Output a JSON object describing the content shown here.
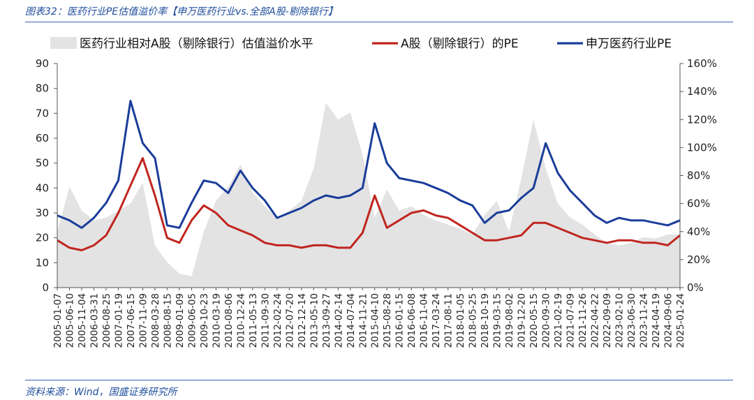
{
  "figure_title": "图表32：医药行业PE估值溢价率【申万医药行业vs.全部A股-剔除银行】",
  "source": "资料来源：Wind，国盛证券研究所",
  "colors": {
    "premium_fill": "#e3e3e3",
    "a_share": "#c0251f",
    "pharma": "#1a3d9a",
    "rule": "#3a63b8",
    "title": "#1f4e9c"
  },
  "chart_data": {
    "type": "line",
    "x": [
      "2005-01-07",
      "2005-06-10",
      "2005-11-04",
      "2006-03-31",
      "2006-08-25",
      "2007-01-19",
      "2007-06-15",
      "2007-11-09",
      "2008-03-28",
      "2008-08-15",
      "2009-01-09",
      "2009-06-05",
      "2009-10-23",
      "2010-03-19",
      "2010-08-06",
      "2010-12-24",
      "2011-05-13",
      "2011-09-30",
      "2012-02-24",
      "2012-07-20",
      "2012-12-14",
      "2013-05-10",
      "2013-09-27",
      "2014-02-14",
      "2014-07-04",
      "2014-11-21",
      "2015-04-10",
      "2015-08-28",
      "2016-01-15",
      "2016-06-08",
      "2016-11-04",
      "2017-03-24",
      "2017-08-11",
      "2018-01-05",
      "2018-05-25",
      "2018-10-19",
      "2019-03-15",
      "2019-08-02",
      "2019-12-20",
      "2020-05-15",
      "2020-09-30",
      "2021-02-19",
      "2021-07-09",
      "2021-11-26",
      "2022-04-22",
      "2022-09-09",
      "2023-02-10",
      "2023-06-30",
      "2023-11-24",
      "2024-04-19",
      "2024-09-06",
      "2025-01-24"
    ],
    "series": [
      {
        "name": "医药行业相对A股（剔除银行）估值溢价水平",
        "axis": "right",
        "style": "area",
        "unit": "%",
        "values": [
          40,
          72,
          55,
          48,
          50,
          55,
          60,
          75,
          30,
          18,
          10,
          8,
          40,
          62,
          72,
          88,
          68,
          58,
          50,
          55,
          62,
          85,
          132,
          120,
          125,
          95,
          50,
          70,
          55,
          58,
          52,
          48,
          45,
          42,
          38,
          52,
          62,
          40,
          78,
          120,
          85,
          60,
          50,
          45,
          38,
          32,
          30,
          32,
          36,
          35,
          38,
          38
        ]
      },
      {
        "name": "A股（剔除银行）的PE",
        "axis": "left",
        "style": "line",
        "values": [
          19,
          16,
          15,
          17,
          21,
          30,
          41,
          52,
          37,
          20,
          18,
          27,
          33,
          30,
          25,
          23,
          21,
          18,
          17,
          17,
          16,
          17,
          17,
          16,
          16,
          22,
          37,
          24,
          27,
          30,
          31,
          29,
          28,
          25,
          22,
          19,
          19,
          20,
          21,
          26,
          26,
          24,
          22,
          20,
          19,
          18,
          19,
          19,
          18,
          18,
          17,
          21
        ]
      },
      {
        "name": "申万医药行业PE",
        "axis": "left",
        "style": "line",
        "values": [
          29,
          27,
          24,
          28,
          34,
          43,
          75,
          58,
          52,
          25,
          24,
          34,
          43,
          42,
          38,
          47,
          40,
          35,
          28,
          30,
          32,
          35,
          37,
          36,
          37,
          40,
          66,
          50,
          44,
          43,
          42,
          40,
          38,
          35,
          33,
          26,
          30,
          31,
          36,
          40,
          58,
          46,
          39,
          34,
          29,
          26,
          28,
          27,
          27,
          26,
          25,
          27
        ]
      }
    ],
    "y_left": {
      "min": 0,
      "max": 90,
      "ticks": [
        "0",
        "10",
        "20",
        "30",
        "40",
        "50",
        "60",
        "70",
        "80",
        "90"
      ]
    },
    "y_right": {
      "min": 0,
      "max": 160,
      "ticks": [
        "0%",
        "20%",
        "40%",
        "60%",
        "80%",
        "100%",
        "120%",
        "140%",
        "160%"
      ]
    },
    "xlabel": "",
    "ylabel": "",
    "grid": false,
    "legend_position": "top"
  }
}
